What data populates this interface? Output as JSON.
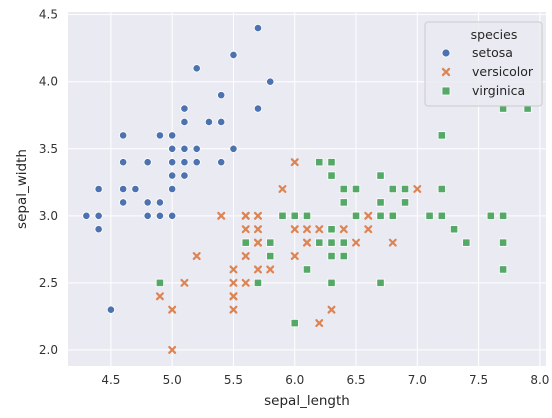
{
  "chart_data": {
    "type": "scatter",
    "title": "",
    "xlabel": "sepal_length",
    "ylabel": "sepal_width",
    "xlim": [
      4.15,
      8.05
    ],
    "ylim": [
      1.88,
      4.52
    ],
    "xticks": [
      4.5,
      5.0,
      5.5,
      6.0,
      6.5,
      7.0,
      7.5,
      8.0
    ],
    "yticks": [
      2.0,
      2.5,
      3.0,
      3.5,
      4.0,
      4.5
    ],
    "x_tick_labels": [
      "4.5",
      "5.0",
      "5.5",
      "6.0",
      "6.5",
      "7.0",
      "7.5",
      "8.0"
    ],
    "y_tick_labels": [
      "2.0",
      "2.5",
      "3.0",
      "3.5",
      "4.0",
      "4.5"
    ],
    "grid": true,
    "background": "#eaeaf2",
    "legend": {
      "title": "species",
      "placement": "top-right"
    },
    "series": [
      {
        "name": "setosa",
        "color": "#4c72b0",
        "marker": "circle",
        "x": [
          5.1,
          4.9,
          4.7,
          4.6,
          5.0,
          5.4,
          4.6,
          5.0,
          4.4,
          4.9,
          5.4,
          4.8,
          4.8,
          4.3,
          5.8,
          5.7,
          5.4,
          5.1,
          5.7,
          5.1,
          5.4,
          5.1,
          4.6,
          5.1,
          4.8,
          5.0,
          5.0,
          5.2,
          5.2,
          4.7,
          4.8,
          5.4,
          5.2,
          5.5,
          4.9,
          5.0,
          5.5,
          4.9,
          4.4,
          5.1,
          5.0,
          4.5,
          4.4,
          5.0,
          5.1,
          4.8,
          5.1,
          4.6,
          5.3,
          5.0
        ],
        "y": [
          3.5,
          3.0,
          3.2,
          3.1,
          3.6,
          3.9,
          3.4,
          3.4,
          2.9,
          3.1,
          3.7,
          3.4,
          3.0,
          3.0,
          4.0,
          4.4,
          3.9,
          3.5,
          3.8,
          3.8,
          3.4,
          3.7,
          3.6,
          3.3,
          3.4,
          3.0,
          3.4,
          3.5,
          3.4,
          3.2,
          3.1,
          3.4,
          4.1,
          4.2,
          3.1,
          3.2,
          3.5,
          3.6,
          3.0,
          3.4,
          3.5,
          2.3,
          3.2,
          3.5,
          3.8,
          3.0,
          3.8,
          3.2,
          3.7,
          3.3
        ]
      },
      {
        "name": "versicolor",
        "color": "#dd8452",
        "marker": "x",
        "x": [
          7.0,
          6.4,
          6.9,
          5.5,
          6.5,
          5.7,
          6.3,
          4.9,
          6.6,
          5.2,
          5.0,
          5.9,
          6.0,
          6.1,
          5.6,
          6.7,
          5.6,
          5.8,
          6.2,
          5.6,
          5.9,
          6.1,
          6.3,
          6.1,
          6.4,
          6.6,
          6.8,
          6.7,
          6.0,
          5.7,
          5.5,
          5.5,
          5.8,
          6.0,
          5.4,
          6.0,
          6.7,
          6.3,
          5.6,
          5.5,
          5.5,
          6.1,
          5.8,
          5.0,
          5.6,
          5.7,
          5.7,
          6.2,
          5.1,
          5.7
        ],
        "y": [
          3.2,
          3.2,
          3.1,
          2.3,
          2.8,
          2.8,
          3.3,
          2.4,
          2.9,
          2.7,
          2.0,
          3.0,
          2.2,
          2.9,
          2.9,
          3.1,
          3.0,
          2.7,
          2.2,
          2.5,
          3.2,
          2.8,
          2.5,
          2.8,
          2.9,
          3.0,
          2.8,
          3.0,
          2.9,
          2.6,
          2.4,
          2.4,
          2.7,
          2.7,
          3.0,
          3.4,
          3.1,
          2.3,
          3.0,
          2.5,
          2.6,
          3.0,
          2.6,
          2.3,
          2.7,
          3.0,
          2.9,
          2.9,
          2.5,
          2.8
        ]
      },
      {
        "name": "virginica",
        "color": "#55a868",
        "marker": "square",
        "x": [
          6.3,
          5.8,
          7.1,
          6.3,
          6.5,
          7.6,
          4.9,
          7.3,
          6.7,
          7.2,
          6.5,
          6.4,
          6.8,
          5.7,
          5.8,
          6.4,
          6.5,
          7.7,
          7.7,
          6.0,
          6.9,
          5.6,
          7.7,
          6.3,
          6.7,
          7.2,
          6.2,
          6.1,
          6.4,
          7.2,
          7.4,
          7.9,
          6.4,
          6.3,
          6.1,
          7.7,
          6.3,
          6.4,
          6.0,
          6.9,
          6.7,
          6.9,
          5.8,
          6.8,
          6.7,
          6.7,
          6.3,
          6.5,
          6.2,
          5.9
        ],
        "y": [
          3.3,
          2.7,
          3.0,
          2.9,
          3.0,
          3.0,
          2.5,
          2.9,
          2.5,
          3.6,
          3.2,
          2.7,
          3.0,
          2.5,
          2.8,
          3.2,
          3.0,
          3.8,
          2.6,
          2.2,
          3.2,
          2.8,
          2.8,
          2.7,
          3.3,
          3.2,
          2.8,
          3.0,
          2.8,
          3.0,
          2.8,
          3.8,
          2.8,
          2.8,
          2.6,
          3.0,
          3.4,
          3.1,
          3.0,
          3.1,
          3.1,
          3.1,
          2.7,
          3.2,
          3.3,
          3.0,
          2.5,
          3.0,
          3.4,
          3.0
        ]
      }
    ]
  }
}
